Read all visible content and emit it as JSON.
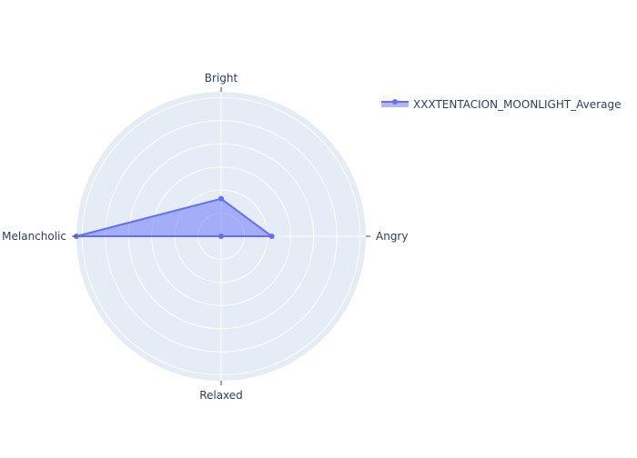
{
  "chart_data": {
    "type": "radar",
    "categories": [
      "Angry",
      "Bright",
      "Melancholic",
      "Relaxed"
    ],
    "series": [
      {
        "name": "XXXTENTACION_MOONLIGHT_Average",
        "values": [
          0.35,
          0.26,
          1.0,
          0.0
        ]
      }
    ],
    "rlim": [
      0,
      1.0
    ],
    "grid": true,
    "legend": "top-right",
    "colors": {
      "line": "#636efa",
      "fill": "#636efa",
      "polar_bg": "#e5ecf6",
      "grid": "#ffffff",
      "text": "#2a3f5f"
    }
  }
}
